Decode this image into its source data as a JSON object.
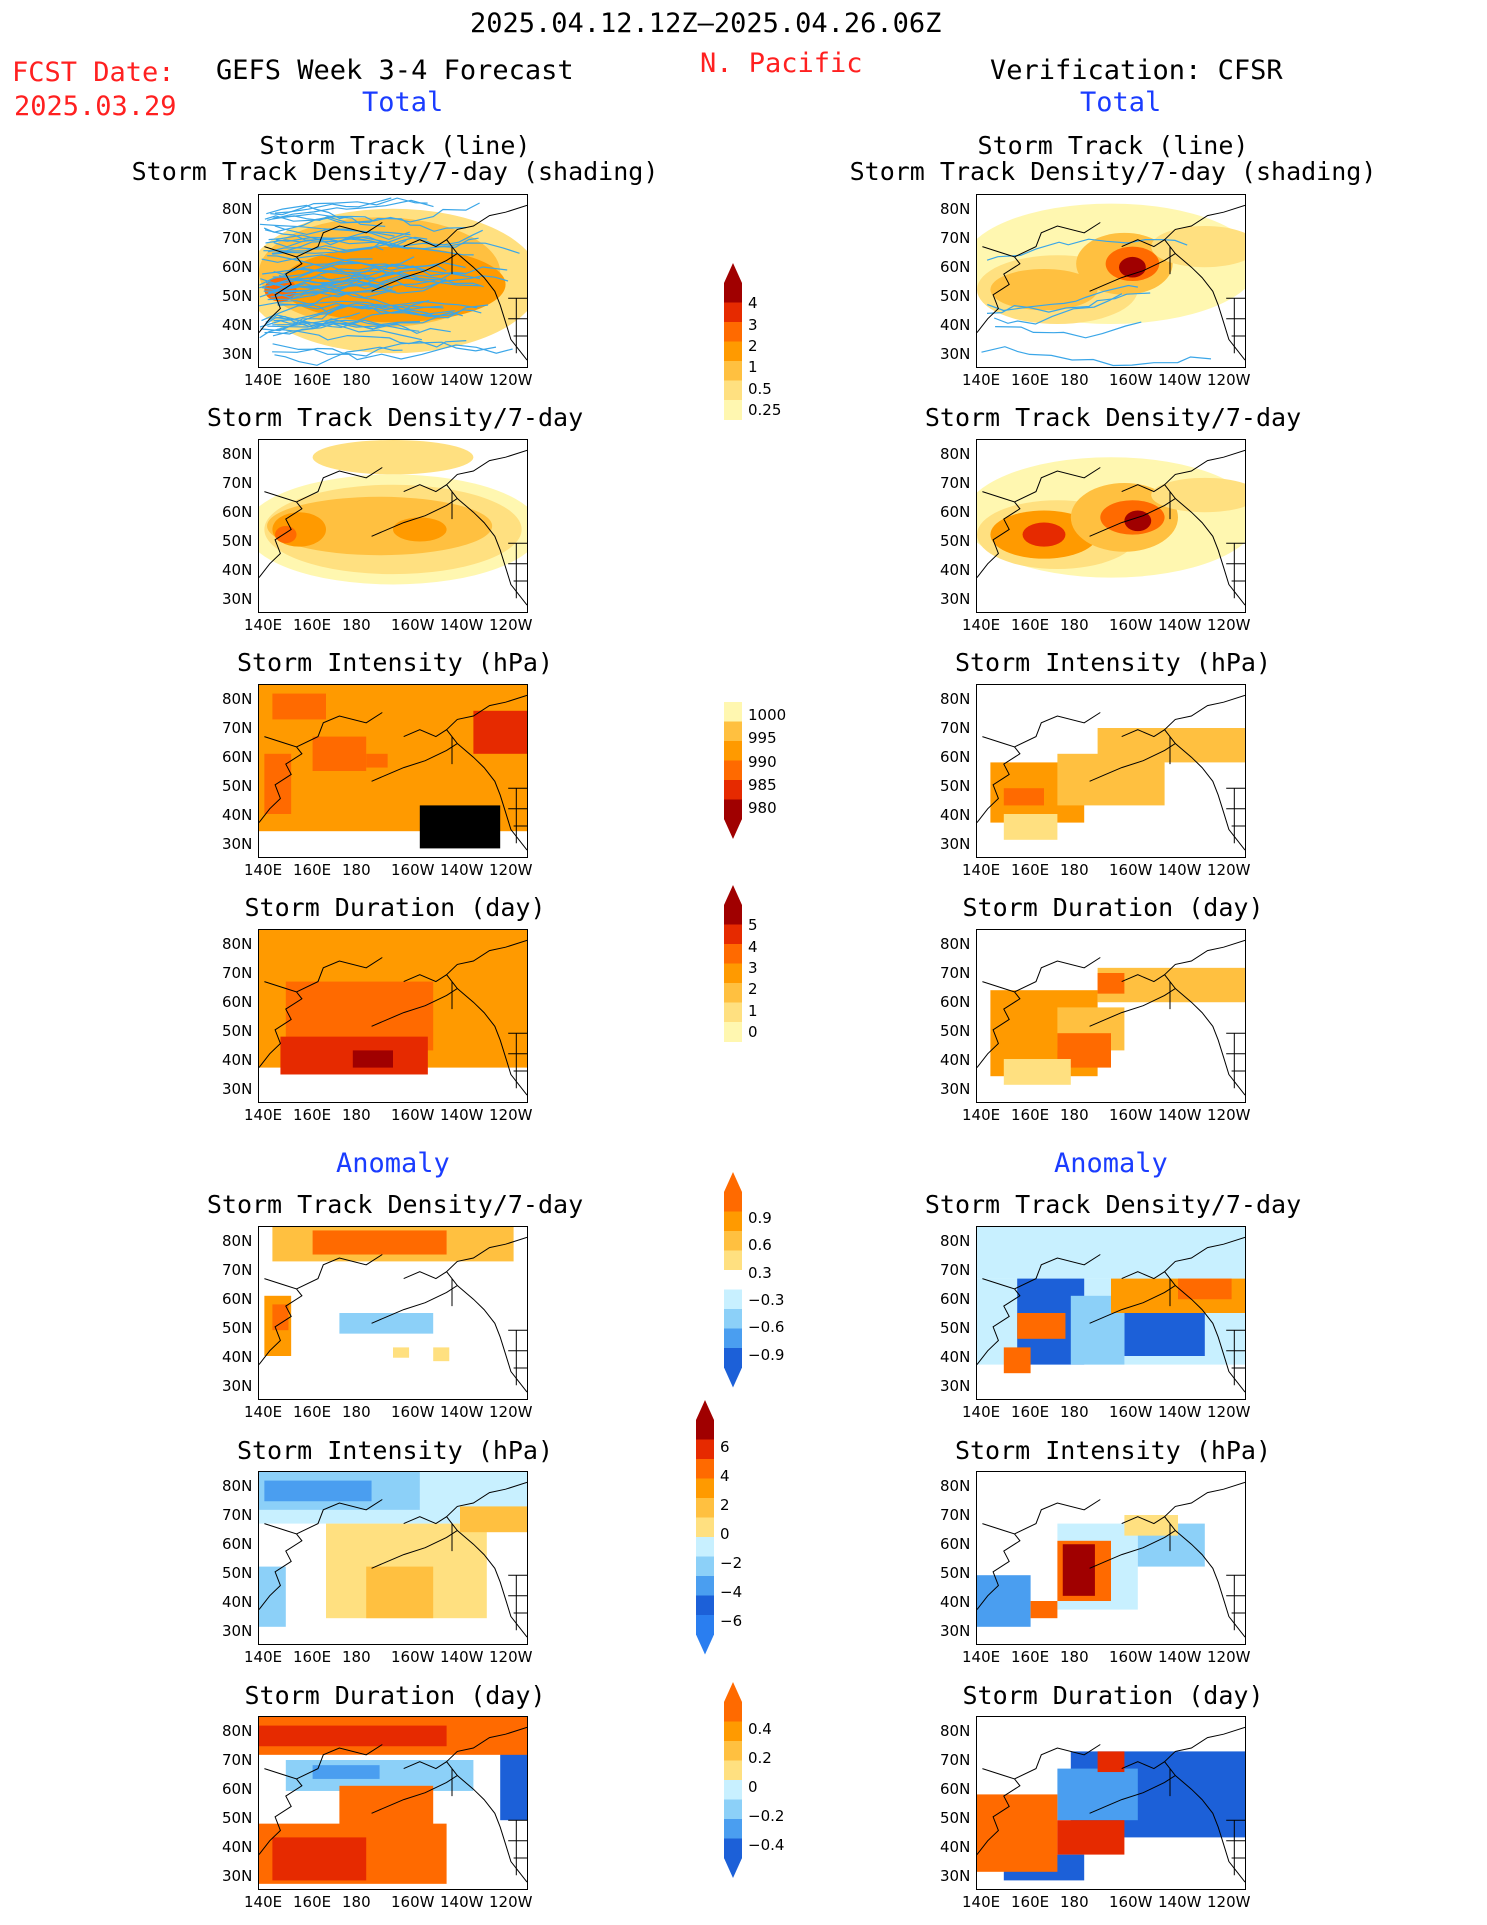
{
  "header": {
    "date_range": "2025.04.12.12Z–2025.04.26.06Z",
    "fcst_label": "FCST Date:",
    "fcst_date": "2025.03.29",
    "model_title": "GEFS Week 3-4 Forecast",
    "region": "N. Pacific",
    "verification": "Verification: CFSR",
    "total_left": "Total",
    "total_right": "Total",
    "anomaly_left": "Anomaly",
    "anomaly_right": "Anomaly"
  },
  "panels": {
    "track_line": "Storm Track (line)",
    "track_density_shading": "Storm Track Density/7-day (shading)",
    "track_density": "Storm Track Density/7-day",
    "intensity": "Storm Intensity (hPa)",
    "duration": "Storm Duration (day)"
  },
  "axes": {
    "lat_labels": [
      "80N",
      "70N",
      "60N",
      "50N",
      "40N",
      "30N"
    ],
    "lon_labels": [
      "140E",
      "160E",
      "180",
      "160W",
      "140W",
      "120W"
    ]
  },
  "colorbars": {
    "density": [
      "4",
      "3",
      "2",
      "1",
      "0.5",
      "0.25"
    ],
    "intensity": [
      "1000",
      "995",
      "990",
      "985",
      "980"
    ],
    "duration": [
      "5",
      "4",
      "3",
      "2",
      "1",
      "0"
    ],
    "density_anom": [
      "0.9",
      "0.6",
      "0.3",
      "−0.3",
      "−0.6",
      "−0.9"
    ],
    "intensity_anom": [
      "6",
      "4",
      "2",
      "0",
      "−2",
      "−4",
      "−6"
    ],
    "duration_anom": [
      "0.4",
      "0.2",
      "0",
      "−0.2",
      "−0.4"
    ]
  },
  "colors": {
    "title_red": "#ff2020",
    "title_blue": "#1a3cff",
    "track_line": "#3aa6e8",
    "warm": [
      "#fff7b0",
      "#ffe080",
      "#ffc040",
      "#ff9a00",
      "#ff6a00",
      "#e62a00",
      "#a00000"
    ],
    "cool": [
      "#c8f0ff",
      "#8cd0f8",
      "#4a9ef0",
      "#1c60d8"
    ]
  }
}
